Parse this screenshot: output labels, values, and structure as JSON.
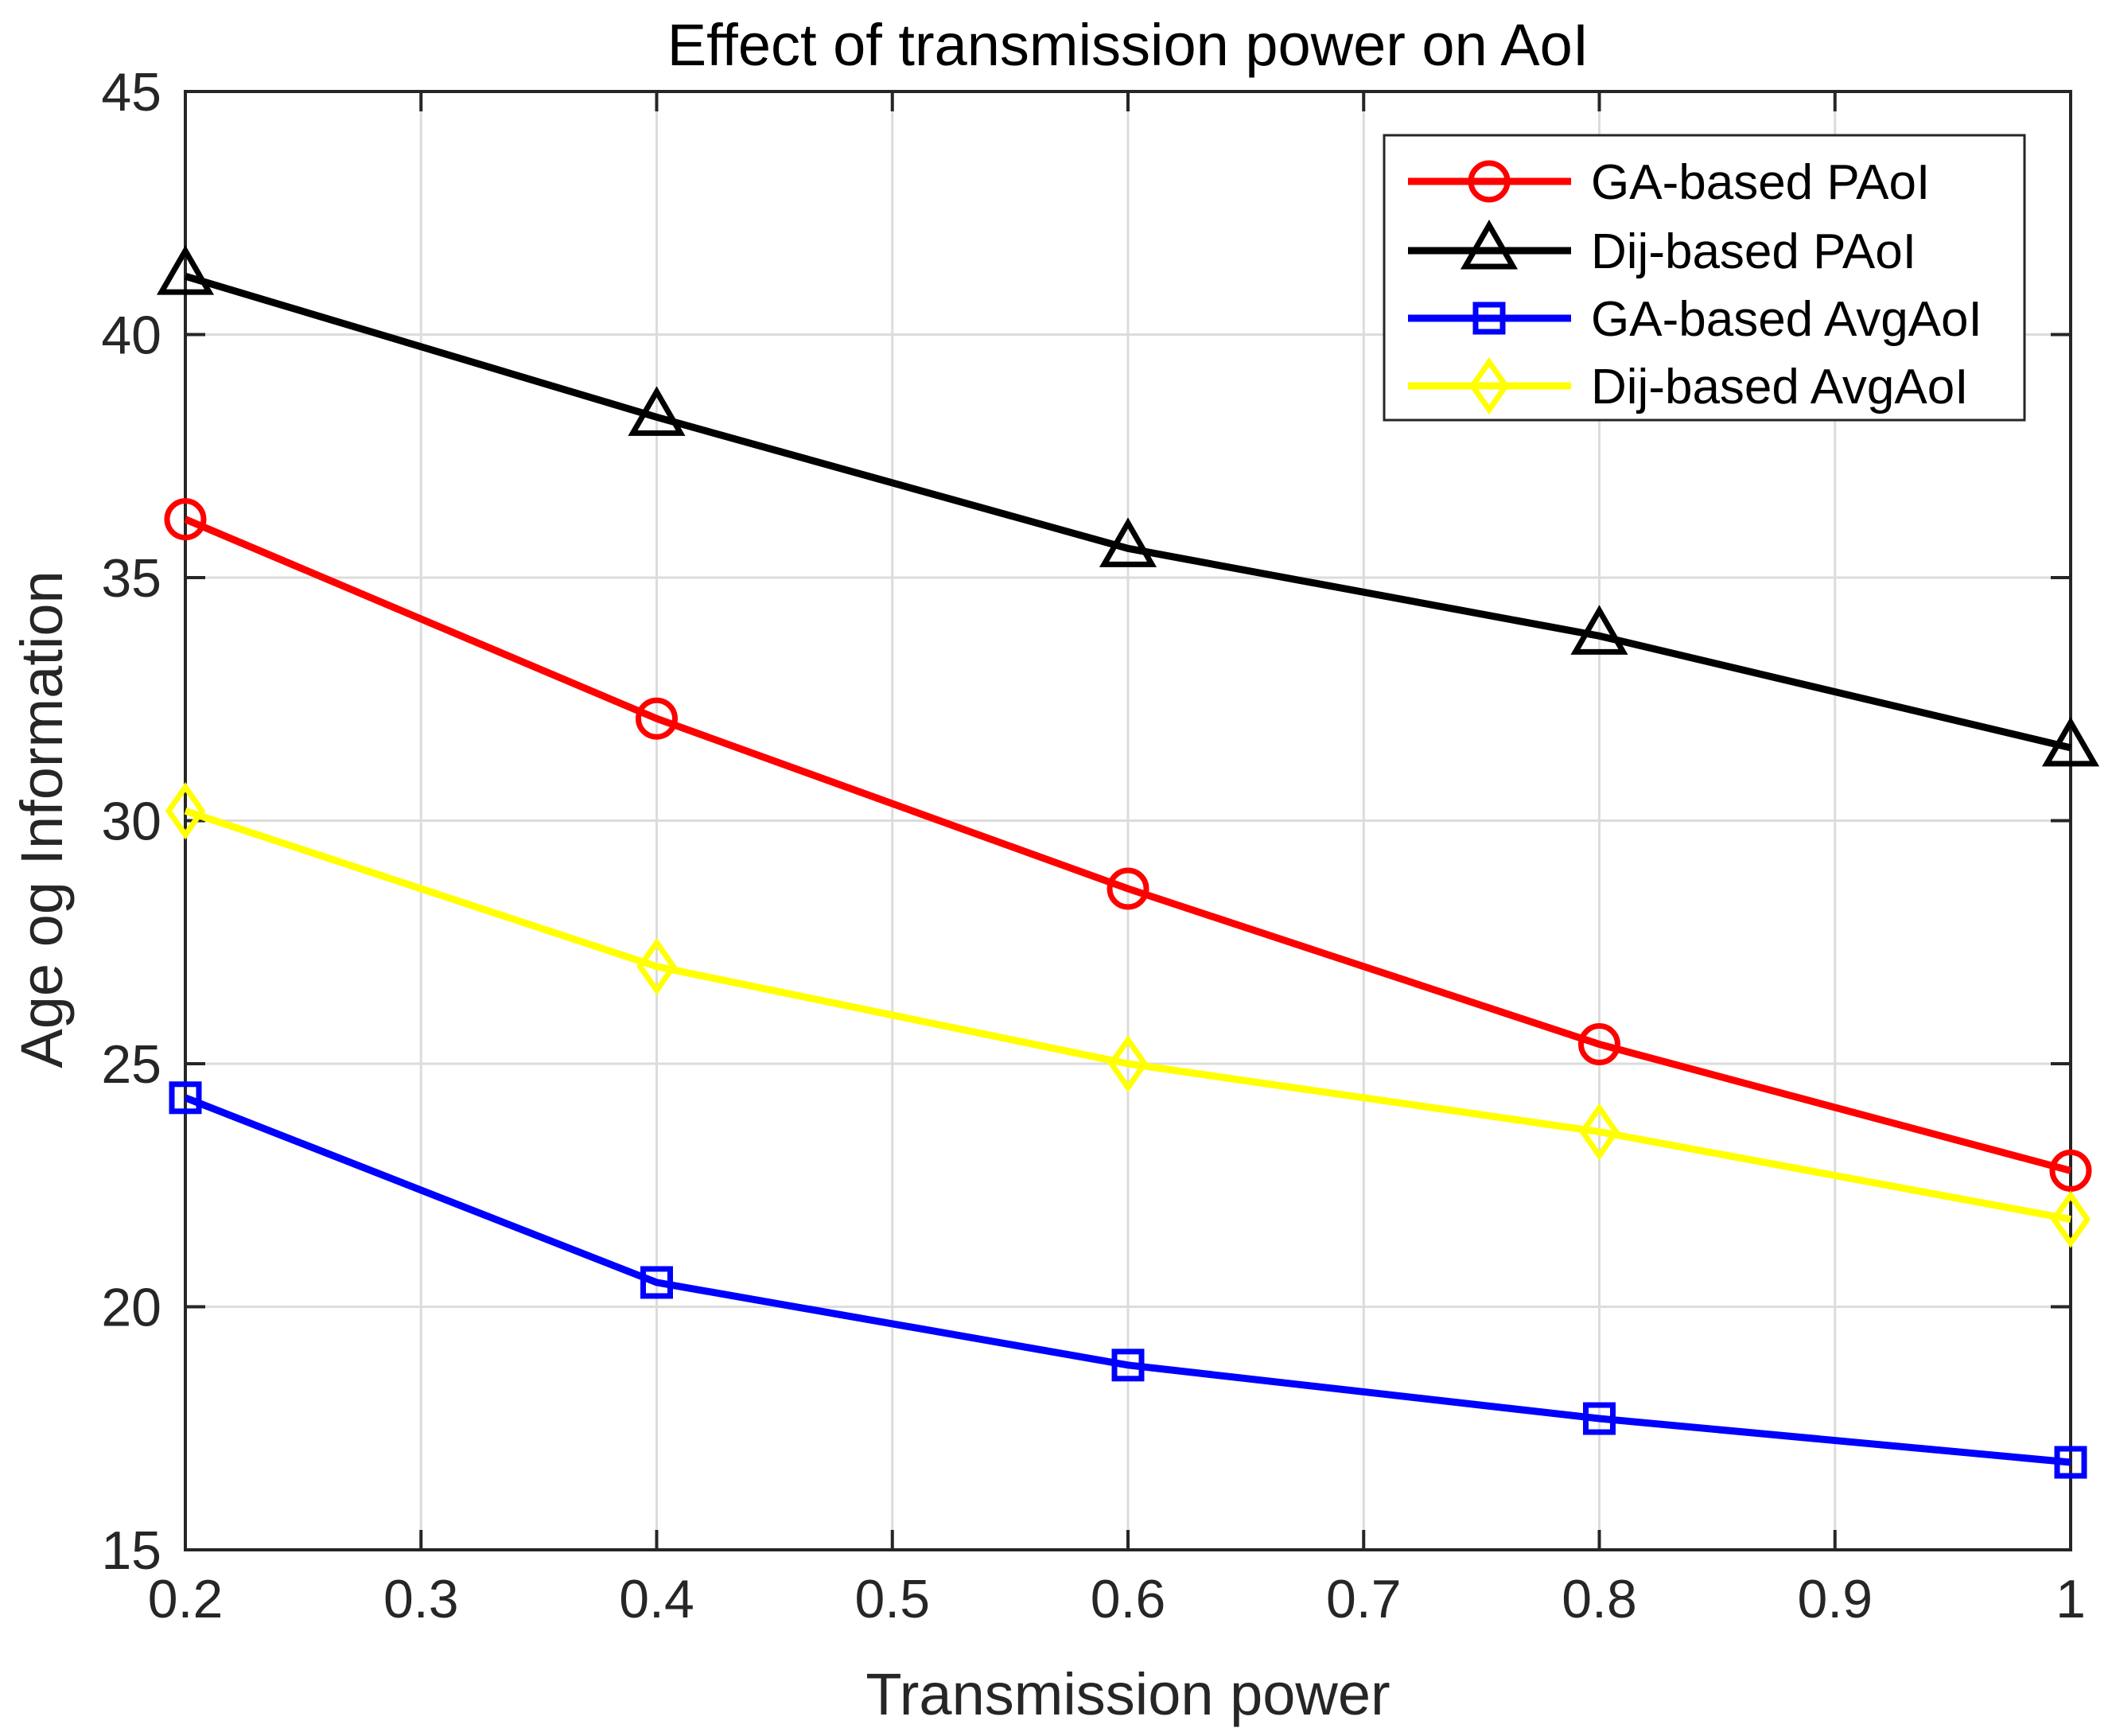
{
  "chart_data": {
    "type": "line",
    "title": "Effect of transmission power on AoI",
    "xlabel": "Transmission power",
    "ylabel": "Age og Information",
    "xlim": [
      0.2,
      1.0
    ],
    "ylim": [
      15,
      45
    ],
    "xticks": [
      0.2,
      0.3,
      0.4,
      0.5,
      0.6,
      0.7,
      0.8,
      0.9,
      1.0
    ],
    "xtick_labels": [
      "0.2",
      "0.3",
      "0.4",
      "0.5",
      "0.6",
      "0.7",
      "0.8",
      "0.9",
      "1"
    ],
    "yticks": [
      15,
      20,
      25,
      30,
      35,
      40,
      45
    ],
    "ytick_labels": [
      "15",
      "20",
      "25",
      "30",
      "35",
      "40",
      "45"
    ],
    "grid": true,
    "legend_position": "top-right",
    "x": [
      0.2,
      0.4,
      0.6,
      0.8,
      1.0
    ],
    "series": [
      {
        "name": "GA-based PAoI",
        "color": "#ff0000",
        "marker": "circle",
        "values": [
          36.2,
          32.1,
          28.6,
          25.4,
          22.8
        ]
      },
      {
        "name": "Dij-based PAoI",
        "color": "#000000",
        "marker": "triangle",
        "values": [
          41.2,
          38.3,
          35.6,
          33.8,
          31.5
        ]
      },
      {
        "name": "GA-based AvgAoI",
        "color": "#0000ff",
        "marker": "square",
        "values": [
          24.3,
          20.5,
          18.8,
          17.7,
          16.8
        ]
      },
      {
        "name": "Dij-based AvgAoI",
        "color": "#ffff00",
        "marker": "diamond",
        "values": [
          30.2,
          27.0,
          25.0,
          23.6,
          21.8
        ]
      }
    ]
  }
}
